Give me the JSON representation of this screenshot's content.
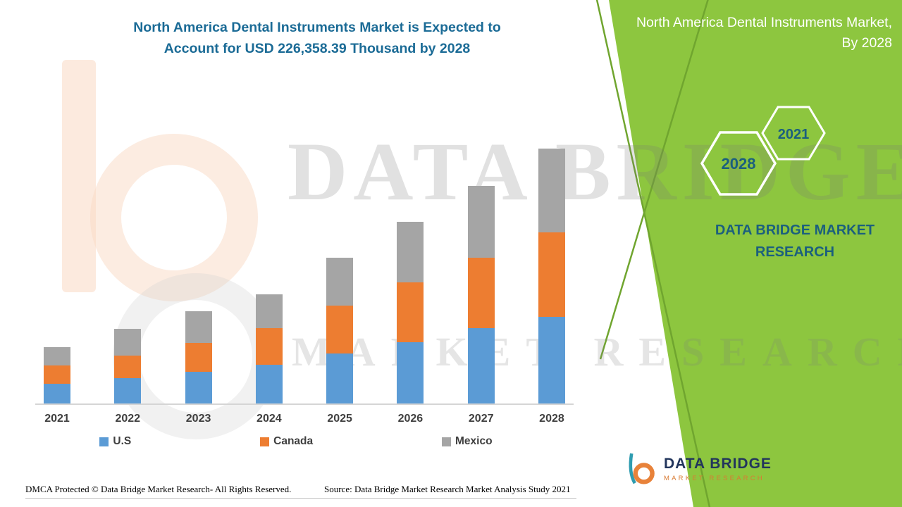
{
  "header": {
    "title_line1": "North America Dental Instruments Market is Expected to",
    "title_line2": "Account for USD 226,358.39 Thousand by 2028"
  },
  "side_panel": {
    "title": "North America Dental Instruments Market, By 2028",
    "hexagons": [
      "2028",
      "2021"
    ],
    "brand_text": "DATA BRIDGE MARKET RESEARCH",
    "accent_green": "#8DC63F",
    "accent_green_dark": "#70A52F",
    "teal_text_color": "#1B5F7E"
  },
  "watermark": {
    "line1": "DATA BRIDGE",
    "line2": "MARKET RESEARCH"
  },
  "logo": {
    "title": "DATA BRIDGE",
    "subtitle": "MARKET RESEARCH"
  },
  "footer": {
    "dmca": "DMCA Protected © Data Bridge Market Research- All Rights Reserved.",
    "source": "Source: Data Bridge Market Research Market Analysis Study 2021"
  },
  "chart_data": {
    "type": "bar",
    "stacked": true,
    "title": "North America Dental Instruments Market is Expected to Account for USD 226,358.39 Thousand by 2028",
    "unit": "USD Thousand",
    "categories": [
      "2021",
      "2022",
      "2023",
      "2024",
      "2025",
      "2026",
      "2027",
      "2028"
    ],
    "series": [
      {
        "name": "U.S",
        "color": "#5B9BD5",
        "values": [
          17500,
          22400,
          28100,
          34300,
          44300,
          54200,
          66700,
          76758.39
        ]
      },
      {
        "name": "Canada",
        "color": "#ED7D31",
        "values": [
          16200,
          20100,
          25600,
          32400,
          42400,
          53600,
          62400,
          75400
        ]
      },
      {
        "name": "Mexico",
        "color": "#A5A5A5",
        "values": [
          16200,
          23600,
          28100,
          30500,
          42400,
          53600,
          64200,
          74200
        ]
      }
    ],
    "totals": [
      49900,
      66100,
      81800,
      97200,
      129100,
      161400,
      193300,
      226358.39
    ],
    "ylim": [
      0,
      230000
    ],
    "grid": false,
    "legend_position": "bottom",
    "annotation": "Total for 2028 = USD 226,358.39 Thousand"
  }
}
